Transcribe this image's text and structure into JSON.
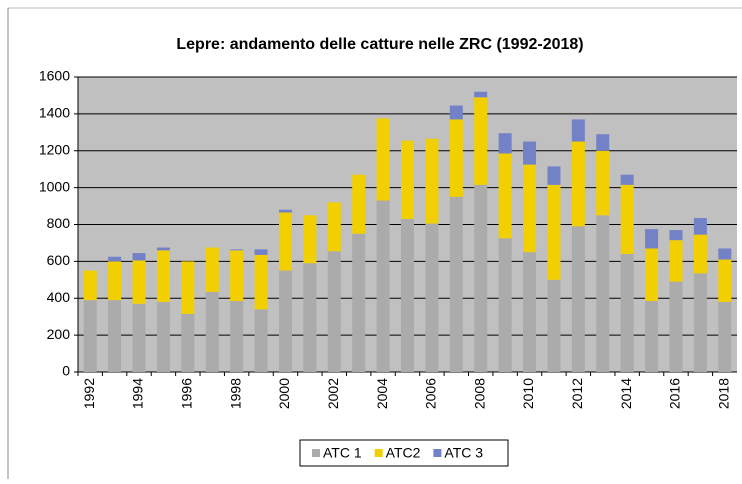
{
  "chart_data": {
    "type": "stacked-bar",
    "title": "Lepre: andamento delle catture nelle ZRC (1992-2018)",
    "categories": [
      "1992",
      null,
      "1994",
      null,
      "1996",
      null,
      "1998",
      null,
      "2000",
      null,
      "2002",
      null,
      "2004",
      null,
      "2006",
      null,
      "2008",
      null,
      "2010",
      null,
      "2012",
      null,
      "2014",
      null,
      "2016",
      null,
      "2018"
    ],
    "series": [
      {
        "name": "ATC 1",
        "color": "#ababab",
        "values": [
          390,
          390,
          370,
          380,
          315,
          435,
          385,
          340,
          550,
          590,
          655,
          750,
          930,
          830,
          805,
          950,
          1015,
          725,
          650,
          500,
          790,
          850,
          640,
          385,
          490,
          535,
          380
        ]
      },
      {
        "name": "ATC2",
        "color": "#f2cf00",
        "values": [
          160,
          210,
          235,
          280,
          285,
          240,
          275,
          295,
          315,
          260,
          265,
          320,
          445,
          425,
          460,
          420,
          475,
          460,
          475,
          515,
          460,
          350,
          375,
          285,
          225,
          210,
          230
        ]
      },
      {
        "name": "ATC 3",
        "color": "#7382c6",
        "values": [
          0,
          25,
          40,
          15,
          0,
          0,
          5,
          30,
          15,
          0,
          0,
          0,
          0,
          0,
          0,
          75,
          30,
          110,
          125,
          100,
          120,
          90,
          55,
          105,
          55,
          90,
          60
        ]
      }
    ],
    "ylim": [
      0,
      1600
    ],
    "yticks": [
      0,
      200,
      400,
      600,
      800,
      1000,
      1200,
      1400,
      1600
    ],
    "grid": true,
    "legend": "bottom"
  }
}
